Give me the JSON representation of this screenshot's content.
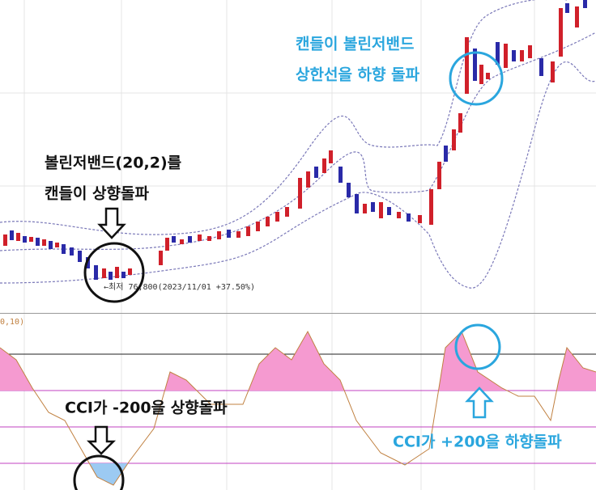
{
  "annotations": {
    "upper_right": [
      "캔들이 볼린저밴드",
      "상한선을 하향 돌파"
    ],
    "upper_left": [
      "볼린저밴드(20,2)를",
      "캔들이 상향돌파"
    ],
    "low_label": "←최저 76,800(2023/11/01 +37.50%)",
    "indicator_label": "0,10)",
    "lower_left": "CCI가 -200을 상향돌파",
    "lower_right": "CCI가 +200을 하향돌파"
  }
}
